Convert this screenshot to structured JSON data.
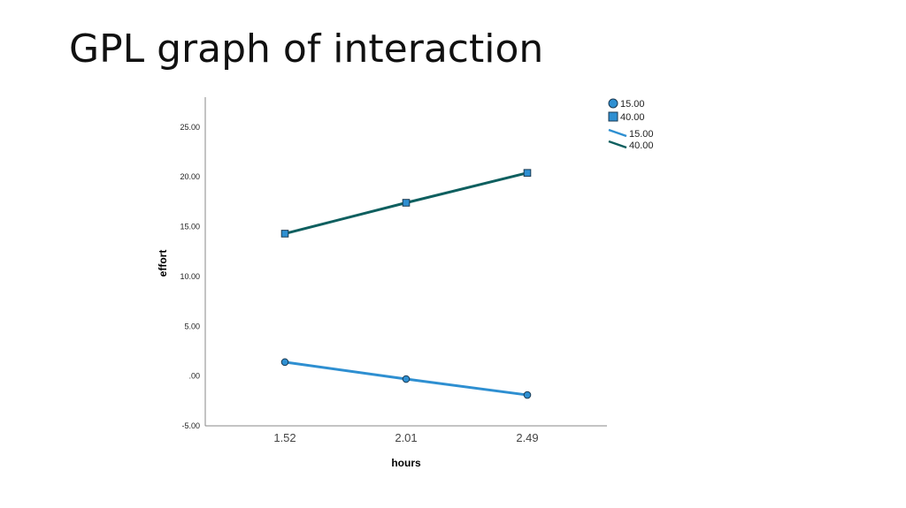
{
  "slide": {
    "title": "GPL graph of interaction"
  },
  "chart_data": {
    "type": "line",
    "categories": [
      "1.52",
      "2.01",
      "2.49"
    ],
    "xlabel": "hours",
    "ylabel": "effort",
    "ylim": [
      -5,
      28
    ],
    "yticks": [
      -5,
      0,
      5,
      10,
      15,
      20,
      25
    ],
    "ytick_labels": [
      "-5.00",
      ".00",
      "5.00",
      "10.00",
      "15.00",
      "20.00",
      "25.00"
    ],
    "series": [
      {
        "name": "15.00",
        "values": [
          1.4,
          -0.3,
          -1.9
        ],
        "color": "#2e8fd1",
        "marker": "circle"
      },
      {
        "name": "40.00",
        "values": [
          14.3,
          17.4,
          20.4
        ],
        "color": "#0e5f5f",
        "marker": "square"
      }
    ],
    "legend_position": "top-right",
    "grid": false
  }
}
